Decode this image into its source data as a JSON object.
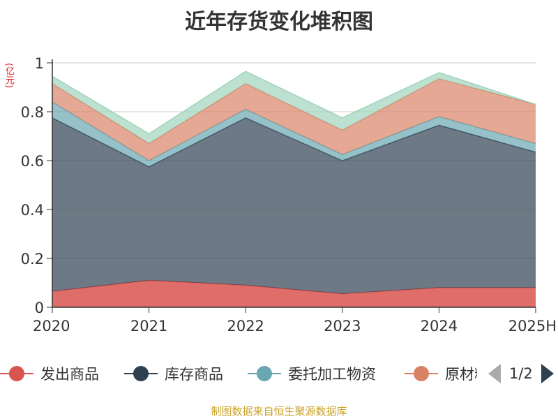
{
  "title": "近年存货变化堆积图",
  "unit": "(亿元)",
  "source": "制图数据来自恒生聚源数据库",
  "pager": {
    "text": "1/2"
  },
  "chart_data": {
    "type": "area",
    "stacked": true,
    "categories": [
      "2020",
      "2021",
      "2022",
      "2023",
      "2024",
      "2025H"
    ],
    "ylim": [
      0,
      1
    ],
    "yticks": [
      "0",
      "0.2",
      "0.4",
      "0.6",
      "0.8",
      "1"
    ],
    "grid": true,
    "legend_position": "bottom",
    "series": [
      {
        "name": "发出商品",
        "color": "#d9534f",
        "values": [
          0.065,
          0.11,
          0.09,
          0.055,
          0.08,
          0.08
        ]
      },
      {
        "name": "库存商品",
        "color": "#2f4050",
        "values": [
          0.71,
          0.465,
          0.685,
          0.545,
          0.665,
          0.555
        ]
      },
      {
        "name": "委托加工物资",
        "color": "#6aa7b0",
        "values": [
          0.065,
          0.025,
          0.035,
          0.025,
          0.035,
          0.035
        ]
      },
      {
        "name": "原材料",
        "color": "#d98366",
        "values": [
          0.075,
          0.07,
          0.105,
          0.1,
          0.155,
          0.16
        ]
      },
      {
        "name": "",
        "color": "#9fd4bc",
        "values": [
          0.03,
          0.04,
          0.05,
          0.05,
          0.025,
          0.0
        ]
      }
    ]
  }
}
